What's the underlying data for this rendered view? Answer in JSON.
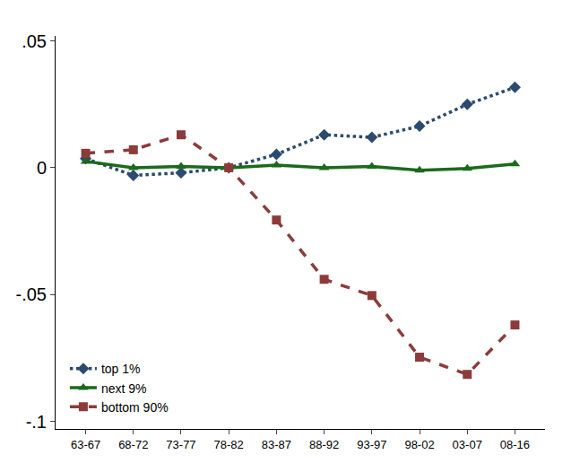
{
  "chart_data": {
    "type": "line",
    "categories": [
      "63-67",
      "68-72",
      "73-77",
      "78-82",
      "83-87",
      "88-92",
      "93-97",
      "98-02",
      "03-07",
      "08-16"
    ],
    "series": [
      {
        "name": "top 1%",
        "color": "#2b4a6d",
        "marker": "diamond",
        "line_style": "dot",
        "values": [
          0.0036,
          -0.003,
          -0.002,
          0,
          0.0053,
          0.013,
          0.012,
          0.0164,
          0.025,
          0.0317
        ]
      },
      {
        "name": "next 9%",
        "color": "#1b6a1b",
        "marker": "triangle-up",
        "line_style": "solid",
        "values": [
          0.0025,
          0,
          0.0005,
          0,
          0.001,
          0,
          0.0005,
          -0.001,
          -0.0003,
          0.0015
        ]
      },
      {
        "name": "bottom 90%",
        "color": "#8c3b3b",
        "marker": "square",
        "line_style": "dash",
        "values": [
          0.0057,
          0.0071,
          0.013,
          0,
          -0.0206,
          -0.044,
          -0.0504,
          -0.0747,
          -0.0815,
          -0.062
        ]
      }
    ],
    "ylim": [
      -0.103,
      0.052
    ],
    "yticks": [
      {
        "value": -0.1,
        "label": "-.1"
      },
      {
        "value": -0.05,
        "label": "-.05"
      },
      0,
      {
        "value": 0.05,
        "label": ".05"
      }
    ],
    "grid": false,
    "legend": "lower left"
  }
}
